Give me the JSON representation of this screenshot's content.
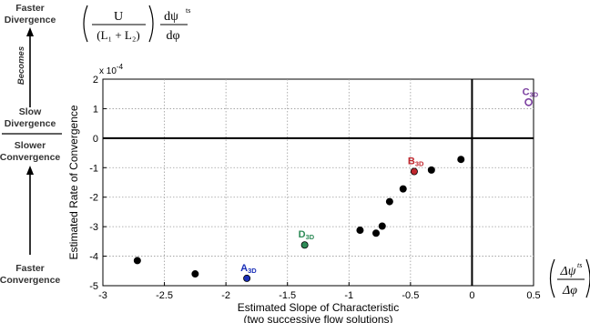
{
  "chart_data": {
    "type": "scatter",
    "xlabel": "Estimated Slope of Characteristic",
    "xlabel_sub": "(two successive flow solutions)",
    "ylabel": "Estimated Rate of Convergence",
    "y_multiplier": "x 10",
    "y_multiplier_exp": "-4",
    "xlim": [
      -3,
      0.5
    ],
    "ylim": [
      -5,
      2
    ],
    "x_ticks": [
      -3,
      -2.5,
      -2,
      -1.5,
      -1,
      -0.5,
      0,
      0.5
    ],
    "x_tick_labels": [
      "-3",
      "-2.5",
      "-2",
      "-1.5",
      "-1",
      "-0.5",
      "0",
      "0.5"
    ],
    "y_ticks": [
      -5,
      -4,
      -3,
      -2,
      -1,
      0,
      1,
      2
    ],
    "y_tick_labels": [
      "-5",
      "-4",
      "-3",
      "-2",
      "-1",
      "0",
      "1",
      "2"
    ],
    "grid": true,
    "points": [
      {
        "x": -2.72,
        "y": -4.15,
        "color": "#000000",
        "filled": true
      },
      {
        "x": -2.25,
        "y": -4.6,
        "color": "#000000",
        "filled": true
      },
      {
        "x": -1.83,
        "y": -4.75,
        "color": "#1a2fb8",
        "filled": true,
        "label": "A",
        "sub": "3D"
      },
      {
        "x": -1.36,
        "y": -3.62,
        "color": "#2e8b57",
        "filled": true,
        "label": "D",
        "sub": "3D"
      },
      {
        "x": -0.91,
        "y": -3.12,
        "color": "#000000",
        "filled": true
      },
      {
        "x": -0.78,
        "y": -3.22,
        "color": "#000000",
        "filled": true
      },
      {
        "x": -0.73,
        "y": -2.98,
        "color": "#000000",
        "filled": true
      },
      {
        "x": -0.67,
        "y": -2.15,
        "color": "#000000",
        "filled": true
      },
      {
        "x": -0.56,
        "y": -1.72,
        "color": "#000000",
        "filled": true
      },
      {
        "x": -0.47,
        "y": -1.13,
        "color": "#c0262d",
        "filled": true,
        "label": "B",
        "sub": "3D"
      },
      {
        "x": -0.33,
        "y": -1.08,
        "color": "#000000",
        "filled": true
      },
      {
        "x": -0.09,
        "y": -0.72,
        "color": "#000000",
        "filled": true
      },
      {
        "x": 0.46,
        "y": 1.22,
        "color": "#7b3fa0",
        "filled": false,
        "label": "C",
        "sub": "3D"
      }
    ]
  },
  "annotations": {
    "faster_divergence": [
      "Faster",
      "Divergence"
    ],
    "becomes": "Becomes",
    "slow_divergence": [
      "Slow",
      "Divergence"
    ],
    "slower_convergence": [
      "Slower",
      "Convergence"
    ],
    "faster_convergence": [
      "Faster",
      "Convergence"
    ],
    "formula_top": {
      "numerator": "U",
      "denominator": "(L₁ + L₂)",
      "deriv_num": "dψ",
      "deriv_sup": "ts",
      "deriv_den": "dφ"
    },
    "formula_right": {
      "numerator": "Δψ",
      "sup": "ts",
      "denominator": "Δφ"
    }
  },
  "colors": {
    "axis": "#000000",
    "grid": "#9a9a9a",
    "point_default": "#000000"
  }
}
